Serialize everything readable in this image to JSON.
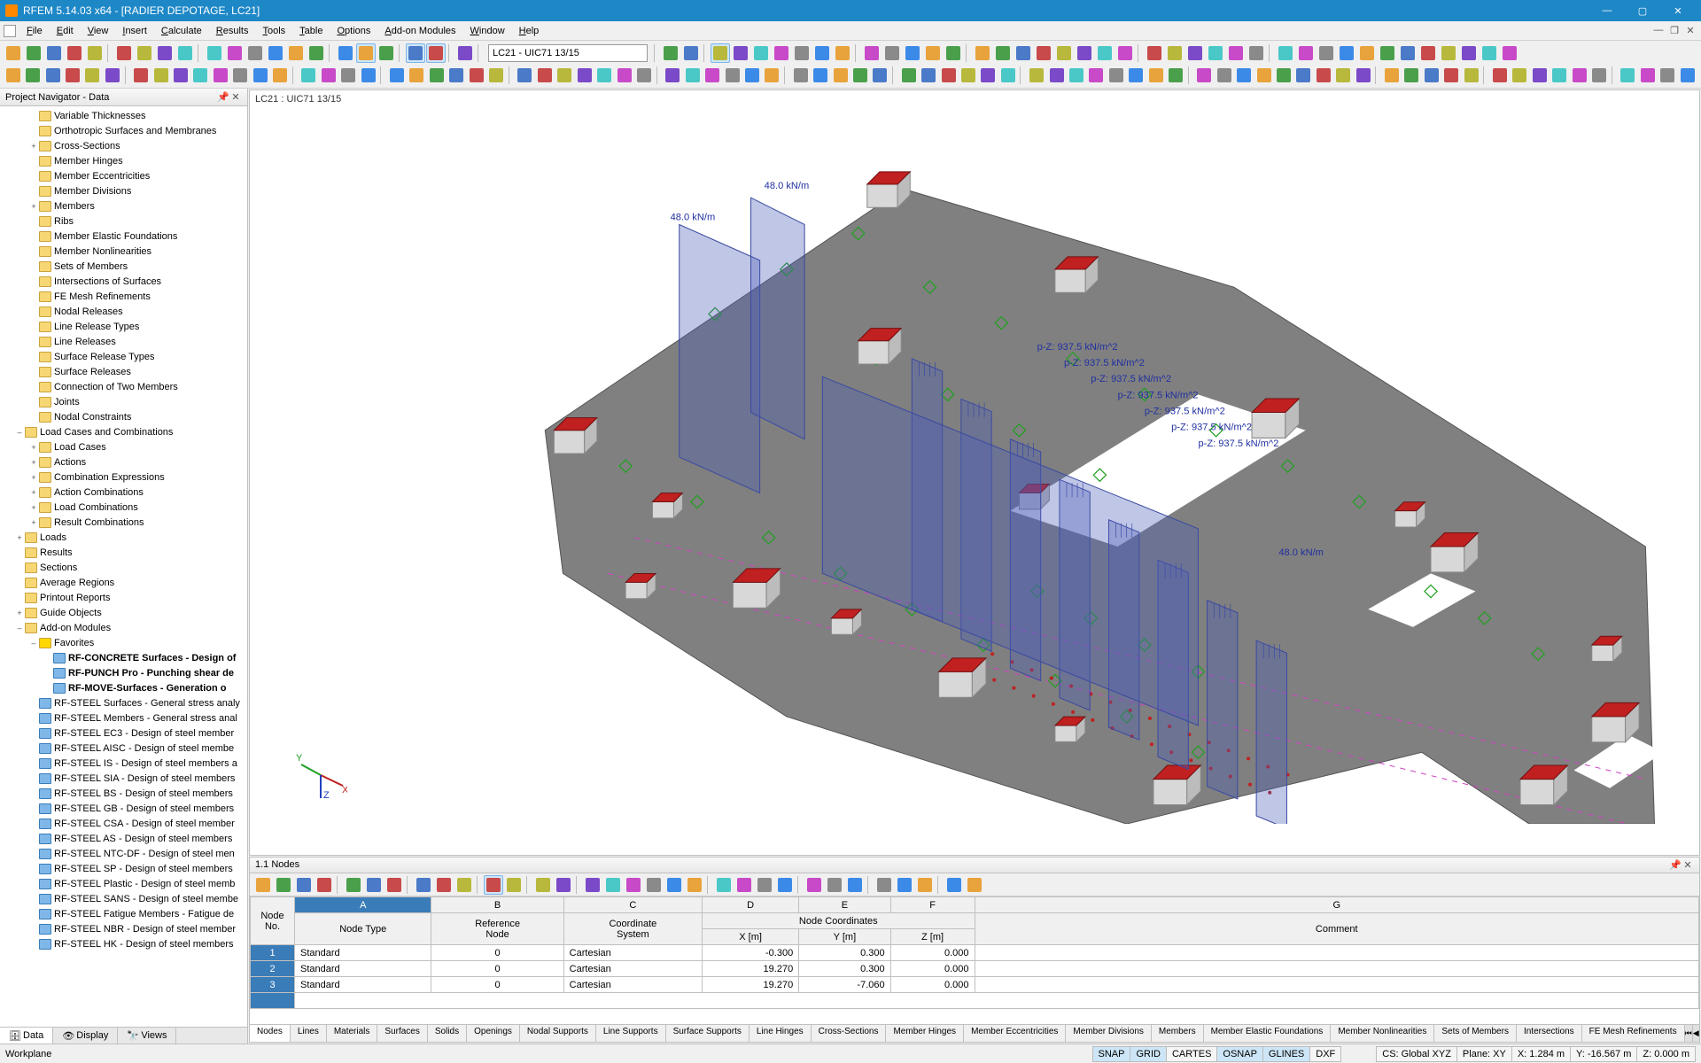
{
  "app": {
    "title": "RFEM 5.14.03 x64 - [RADIER DEPOTAGE, LC21]"
  },
  "menus": [
    "File",
    "Edit",
    "View",
    "Insert",
    "Calculate",
    "Results",
    "Tools",
    "Table",
    "Options",
    "Add-on Modules",
    "Window",
    "Help"
  ],
  "lc_combo": "LC21 - UIC71 13/15",
  "navigator": {
    "title": "Project Navigator - Data",
    "tabs": [
      "Data",
      "Display",
      "Views"
    ],
    "items": [
      {
        "indent": 2,
        "exp": "",
        "label": "Variable Thicknesses"
      },
      {
        "indent": 2,
        "exp": "",
        "label": "Orthotropic Surfaces and Membranes"
      },
      {
        "indent": 2,
        "exp": "+",
        "label": "Cross-Sections"
      },
      {
        "indent": 2,
        "exp": "",
        "label": "Member Hinges"
      },
      {
        "indent": 2,
        "exp": "",
        "label": "Member Eccentricities"
      },
      {
        "indent": 2,
        "exp": "",
        "label": "Member Divisions"
      },
      {
        "indent": 2,
        "exp": "+",
        "label": "Members"
      },
      {
        "indent": 2,
        "exp": "",
        "label": "Ribs"
      },
      {
        "indent": 2,
        "exp": "",
        "label": "Member Elastic Foundations"
      },
      {
        "indent": 2,
        "exp": "",
        "label": "Member Nonlinearities"
      },
      {
        "indent": 2,
        "exp": "",
        "label": "Sets of Members"
      },
      {
        "indent": 2,
        "exp": "",
        "label": "Intersections of Surfaces"
      },
      {
        "indent": 2,
        "exp": "",
        "label": "FE Mesh Refinements"
      },
      {
        "indent": 2,
        "exp": "",
        "label": "Nodal Releases"
      },
      {
        "indent": 2,
        "exp": "",
        "label": "Line Release Types"
      },
      {
        "indent": 2,
        "exp": "",
        "label": "Line Releases"
      },
      {
        "indent": 2,
        "exp": "",
        "label": "Surface Release Types"
      },
      {
        "indent": 2,
        "exp": "",
        "label": "Surface Releases"
      },
      {
        "indent": 2,
        "exp": "",
        "label": "Connection of Two Members"
      },
      {
        "indent": 2,
        "exp": "",
        "label": "Joints"
      },
      {
        "indent": 2,
        "exp": "",
        "label": "Nodal Constraints"
      },
      {
        "indent": 1,
        "exp": "–",
        "label": "Load Cases and Combinations"
      },
      {
        "indent": 2,
        "exp": "+",
        "label": "Load Cases"
      },
      {
        "indent": 2,
        "exp": "+",
        "label": "Actions"
      },
      {
        "indent": 2,
        "exp": "+",
        "label": "Combination Expressions"
      },
      {
        "indent": 2,
        "exp": "+",
        "label": "Action Combinations"
      },
      {
        "indent": 2,
        "exp": "+",
        "label": "Load Combinations"
      },
      {
        "indent": 2,
        "exp": "+",
        "label": "Result Combinations"
      },
      {
        "indent": 1,
        "exp": "+",
        "label": "Loads"
      },
      {
        "indent": 1,
        "exp": "",
        "label": "Results"
      },
      {
        "indent": 1,
        "exp": "",
        "label": "Sections"
      },
      {
        "indent": 1,
        "exp": "",
        "label": "Average Regions"
      },
      {
        "indent": 1,
        "exp": "",
        "label": "Printout Reports"
      },
      {
        "indent": 1,
        "exp": "+",
        "label": "Guide Objects"
      },
      {
        "indent": 1,
        "exp": "–",
        "label": "Add-on Modules"
      },
      {
        "indent": 2,
        "exp": "–",
        "label": "Favorites",
        "fav": true
      },
      {
        "indent": 3,
        "exp": "",
        "label": "RF-CONCRETE Surfaces - Design of",
        "bold": true,
        "mod": true
      },
      {
        "indent": 3,
        "exp": "",
        "label": "RF-PUNCH Pro - Punching shear de",
        "bold": true,
        "mod": true
      },
      {
        "indent": 3,
        "exp": "",
        "label": "RF-MOVE-Surfaces - Generation o",
        "bold": true,
        "mod": true
      },
      {
        "indent": 2,
        "exp": "",
        "label": "RF-STEEL Surfaces - General stress analy",
        "mod": true
      },
      {
        "indent": 2,
        "exp": "",
        "label": "RF-STEEL Members - General stress anal",
        "mod": true
      },
      {
        "indent": 2,
        "exp": "",
        "label": "RF-STEEL EC3 - Design of steel member",
        "mod": true
      },
      {
        "indent": 2,
        "exp": "",
        "label": "RF-STEEL AISC - Design of steel membe",
        "mod": true
      },
      {
        "indent": 2,
        "exp": "",
        "label": "RF-STEEL IS - Design of steel members a",
        "mod": true
      },
      {
        "indent": 2,
        "exp": "",
        "label": "RF-STEEL SIA - Design of steel members",
        "mod": true
      },
      {
        "indent": 2,
        "exp": "",
        "label": "RF-STEEL BS - Design of steel members",
        "mod": true
      },
      {
        "indent": 2,
        "exp": "",
        "label": "RF-STEEL GB - Design of steel members",
        "mod": true
      },
      {
        "indent": 2,
        "exp": "",
        "label": "RF-STEEL CSA - Design of steel member",
        "mod": true
      },
      {
        "indent": 2,
        "exp": "",
        "label": "RF-STEEL AS - Design of steel members",
        "mod": true
      },
      {
        "indent": 2,
        "exp": "",
        "label": "RF-STEEL NTC-DF - Design of steel men",
        "mod": true
      },
      {
        "indent": 2,
        "exp": "",
        "label": "RF-STEEL SP - Design of steel members",
        "mod": true
      },
      {
        "indent": 2,
        "exp": "",
        "label": "RF-STEEL Plastic - Design of steel memb",
        "mod": true
      },
      {
        "indent": 2,
        "exp": "",
        "label": "RF-STEEL SANS - Design of steel membe",
        "mod": true
      },
      {
        "indent": 2,
        "exp": "",
        "label": "RF-STEEL Fatigue Members - Fatigue de",
        "mod": true
      },
      {
        "indent": 2,
        "exp": "",
        "label": "RF-STEEL NBR - Design of steel member",
        "mod": true
      },
      {
        "indent": 2,
        "exp": "",
        "label": "RF-STEEL HK - Design of steel members",
        "mod": true
      }
    ]
  },
  "viewport": {
    "label": "LC21 : UIC71 13/15",
    "loads_line_label": "48.0 kN/m",
    "loads_area_label": "p-Z: 937.5 kN/m^2",
    "colors": {
      "slab": "#808080",
      "support_top": "#c02020",
      "support_side": "#d8d8d8",
      "load_fill": "#4a5db8",
      "load_fill_opacity": 0.35,
      "load_line": "#3a4aa0",
      "support_marker": "#20a020",
      "dash_line": "#d040c0"
    }
  },
  "tablepanel": {
    "title": "1.1 Nodes",
    "colletters": [
      "A",
      "B",
      "C",
      "D",
      "E",
      "F",
      "G"
    ],
    "header_group": {
      "node_no": "Node\nNo.",
      "node_type": "Node Type",
      "ref_node": "Reference\nNode",
      "coord_sys": "Coordinate\nSystem",
      "coords": "Node Coordinates",
      "x": "X [m]",
      "y": "Y [m]",
      "z": "Z [m]",
      "comment": "Comment"
    },
    "rows": [
      {
        "no": "1",
        "type": "Standard",
        "ref": "0",
        "sys": "Cartesian",
        "x": "-0.300",
        "y": "0.300",
        "z": "0.000",
        "comment": ""
      },
      {
        "no": "2",
        "type": "Standard",
        "ref": "0",
        "sys": "Cartesian",
        "x": "19.270",
        "y": "0.300",
        "z": "0.000",
        "comment": ""
      },
      {
        "no": "3",
        "type": "Standard",
        "ref": "0",
        "sys": "Cartesian",
        "x": "19.270",
        "y": "-7.060",
        "z": "0.000",
        "comment": ""
      }
    ],
    "tabs": [
      "Nodes",
      "Lines",
      "Materials",
      "Surfaces",
      "Solids",
      "Openings",
      "Nodal Supports",
      "Line Supports",
      "Surface Supports",
      "Line Hinges",
      "Cross-Sections",
      "Member Hinges",
      "Member Eccentricities",
      "Member Divisions",
      "Members",
      "Member Elastic Foundations",
      "Member Nonlinearities",
      "Sets of Members",
      "Intersections",
      "FE Mesh Refinements"
    ]
  },
  "statusbar": {
    "left": "Workplane",
    "toggles": [
      "SNAP",
      "GRID",
      "CARTES",
      "OSNAP",
      "GLINES",
      "DXF"
    ],
    "active_toggles": [
      "SNAP",
      "GRID",
      "OSNAP",
      "GLINES"
    ],
    "cs": "CS: Global XYZ",
    "plane": "Plane: XY",
    "x": "X: 1.284 m",
    "y": "Y: -16.567 m",
    "z": "Z: 0.000 m"
  },
  "toolbar_colors": [
    "#e8a33c",
    "#4aa04a",
    "#4a7ac8",
    "#c84a4a",
    "#b8b83c",
    "#7a4ac8",
    "#4ac8c8",
    "#c84ac8",
    "#8a8a8a",
    "#3c8ae8"
  ]
}
